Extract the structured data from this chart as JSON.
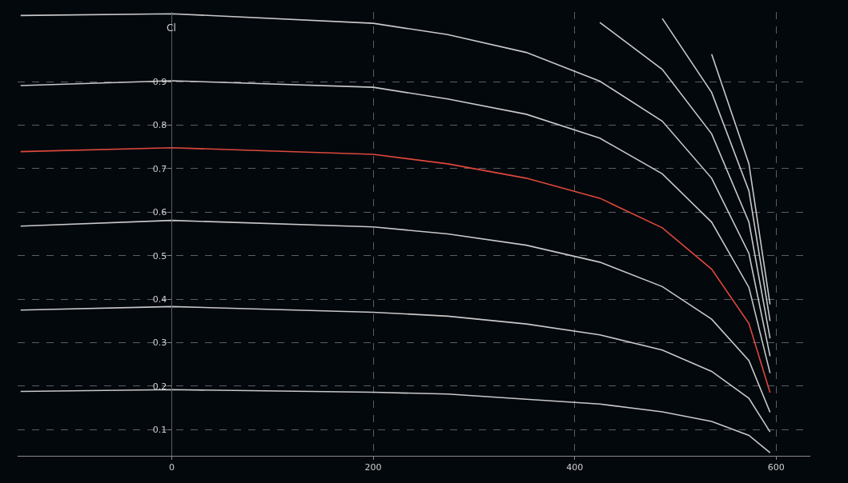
{
  "chart_data": {
    "type": "line",
    "ylabel": "Cl",
    "xlim": [
      -153,
      634
    ],
    "ylim": [
      0.04,
      1.06
    ],
    "xticks": [
      0,
      200,
      400,
      600
    ],
    "yticks": [
      0.1,
      0.2,
      0.3,
      0.4,
      0.5,
      0.6,
      0.7,
      0.8,
      0.9
    ],
    "grid": true,
    "marker": "none",
    "line_style": "solid",
    "x": [
      -150,
      0,
      200,
      274,
      352,
      425,
      487,
      536,
      573,
      594
    ],
    "series": [
      {
        "color": "#c8c8c8",
        "values": [
          0.188,
          0.192,
          0.186,
          0.182,
          0.17,
          0.159,
          0.141,
          0.119,
          0.087,
          0.047
        ]
      },
      {
        "color": "#c8c8c8",
        "values": [
          0.375,
          0.383,
          0.37,
          0.361,
          0.343,
          0.318,
          0.283,
          0.234,
          0.172,
          0.095
        ]
      },
      {
        "color": "#c8c8c8",
        "values": [
          0.568,
          0.581,
          0.566,
          0.55,
          0.524,
          0.485,
          0.429,
          0.354,
          0.259,
          0.14
        ]
      },
      {
        "color": "#e0483a",
        "values": [
          0.739,
          0.748,
          0.733,
          0.711,
          0.678,
          0.632,
          0.564,
          0.469,
          0.344,
          0.185
        ]
      },
      {
        "color": "#c8c8c8",
        "values": [
          0.891,
          0.902,
          0.887,
          0.86,
          0.825,
          0.77,
          0.688,
          0.577,
          0.427,
          0.23
        ]
      },
      {
        "color": "#c8c8c8",
        "values": [
          1.052,
          1.056,
          1.034,
          1.008,
          0.967,
          0.901,
          0.809,
          0.678,
          0.505,
          0.269
        ]
      },
      {
        "color": "#c8c8c8",
        "x": [
          425,
          487,
          536,
          573,
          594
        ],
        "values": [
          1.036,
          0.928,
          0.78,
          0.577,
          0.31
        ]
      },
      {
        "color": "#c8c8c8",
        "x": [
          487,
          536,
          573,
          594
        ],
        "values": [
          1.045,
          0.875,
          0.649,
          0.35
        ]
      },
      {
        "color": "#c8c8c8",
        "x": [
          536,
          573,
          594
        ],
        "values": [
          0.963,
          0.711,
          0.388
        ]
      }
    ]
  }
}
